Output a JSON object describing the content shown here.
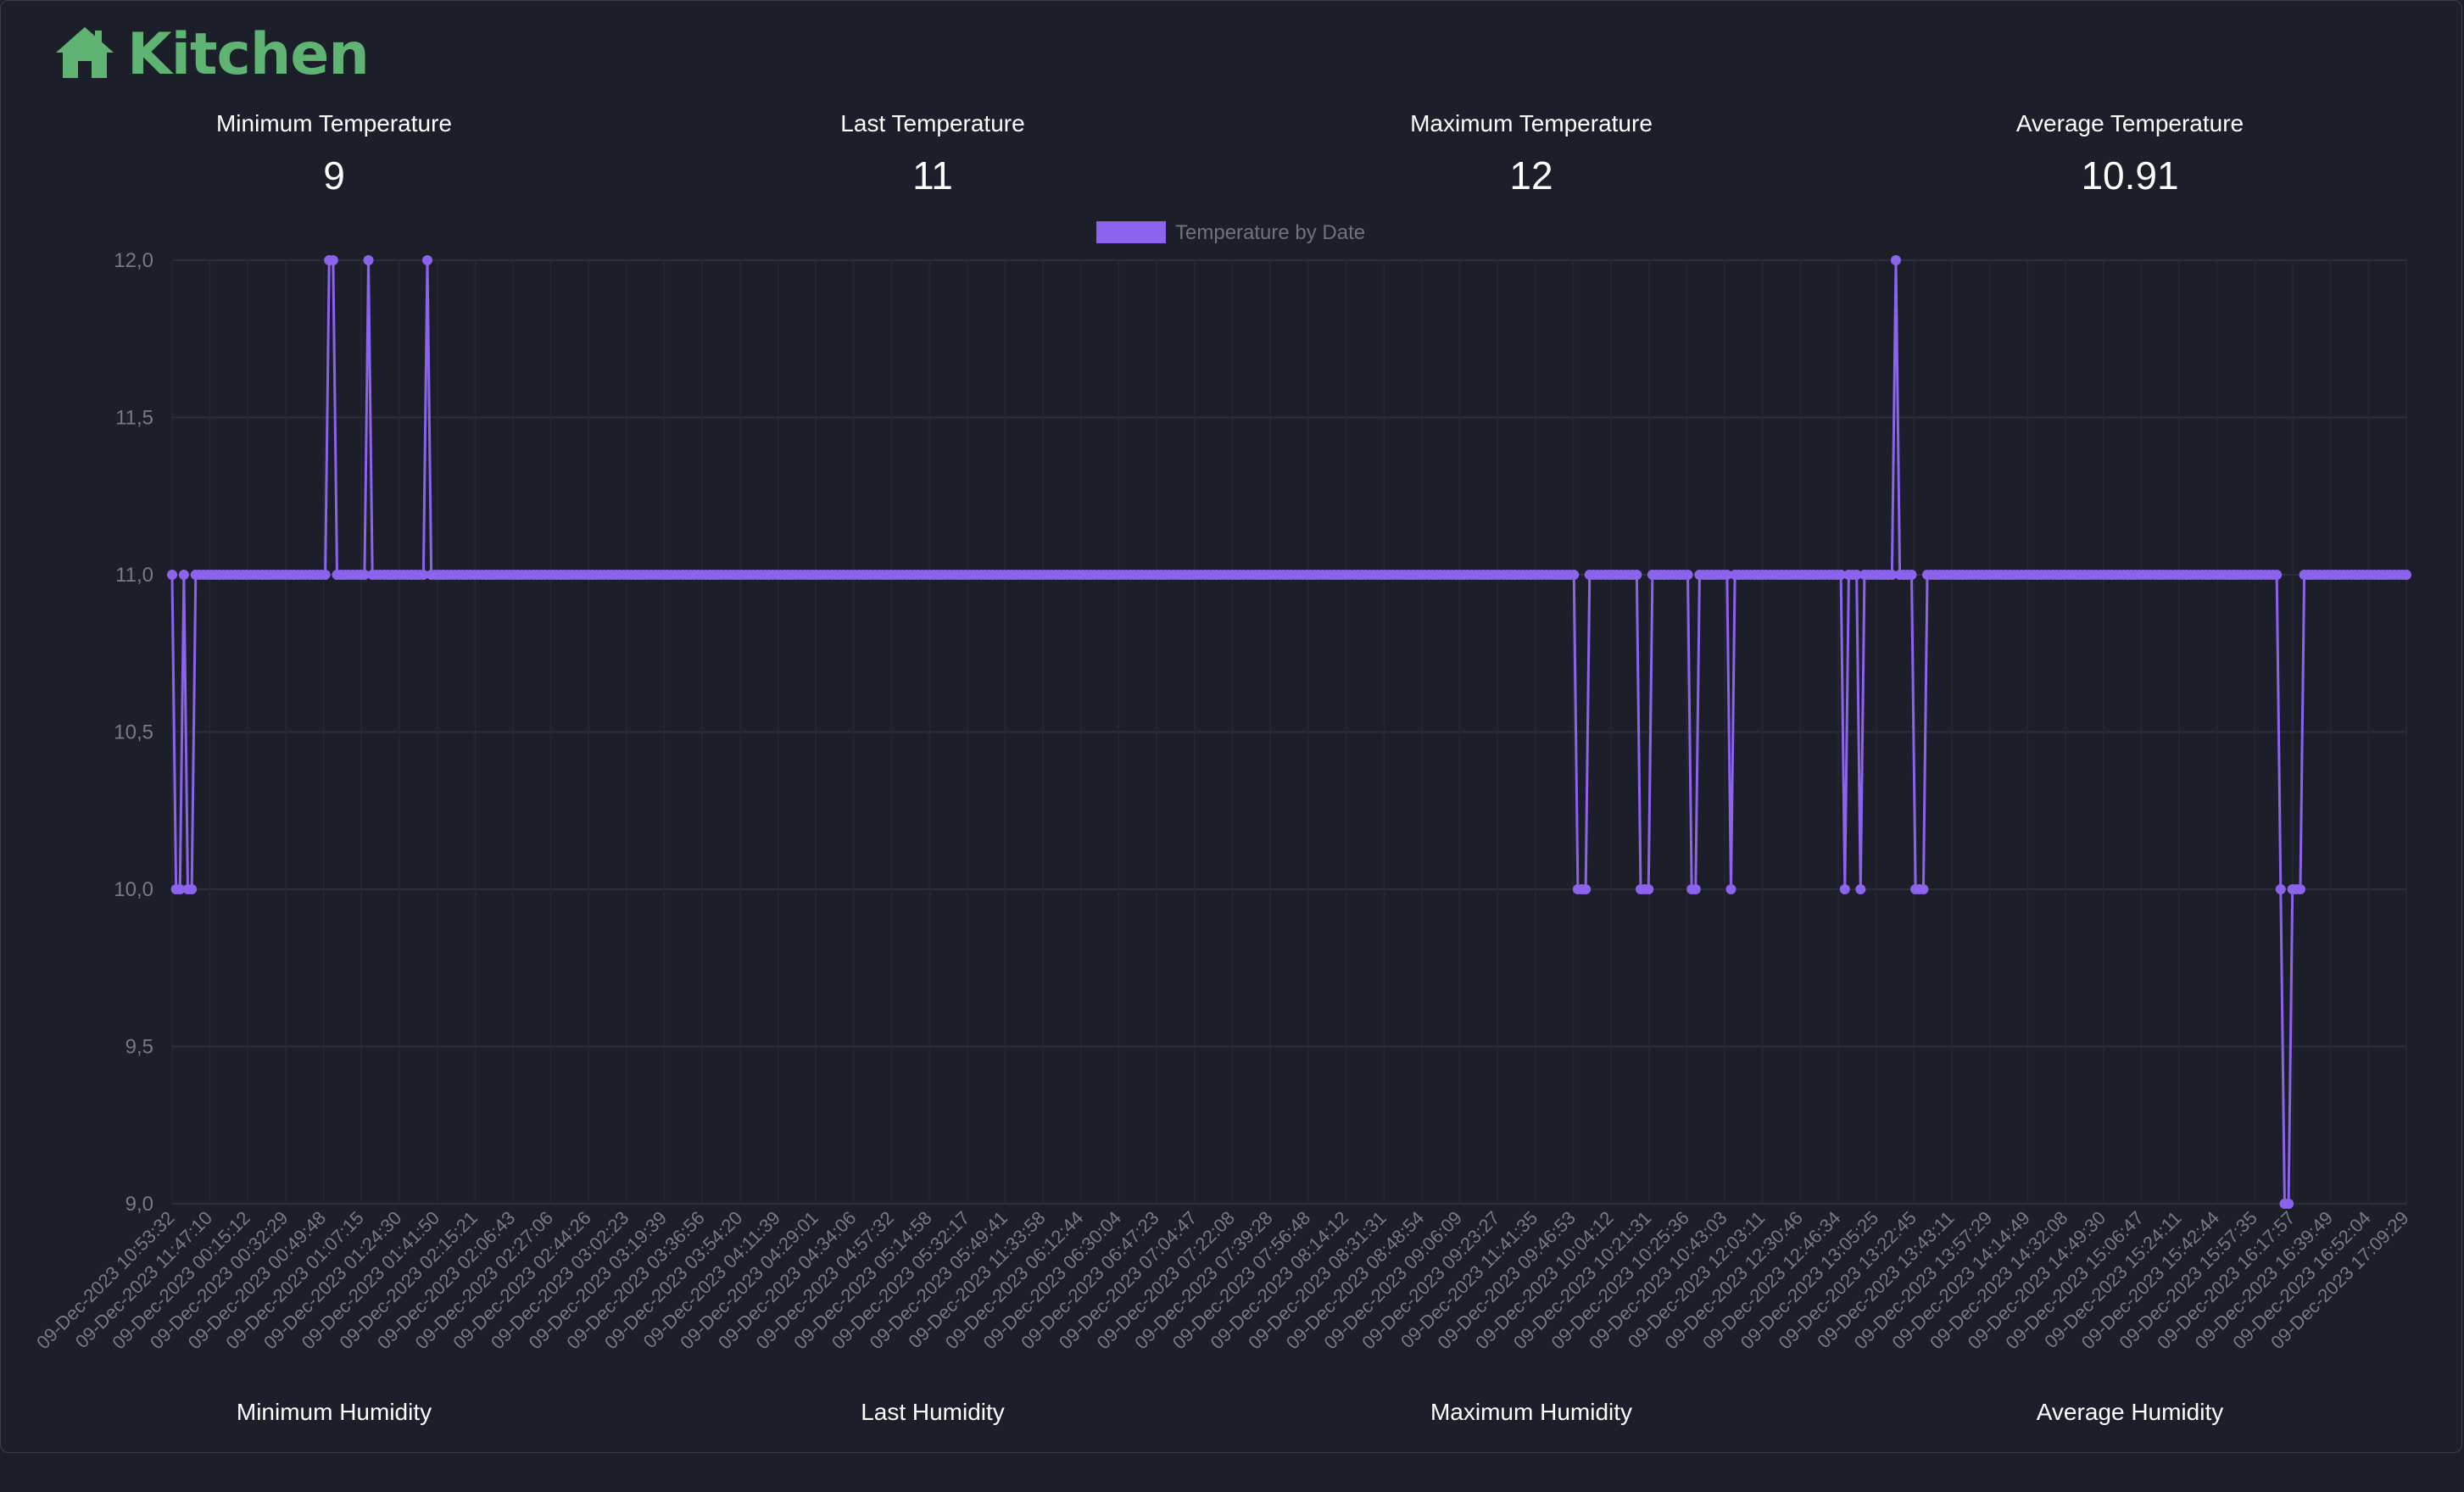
{
  "header": {
    "title": "Kitchen",
    "icon": "home-icon"
  },
  "colors": {
    "accent": "#8c63ec",
    "title": "#5fb373",
    "background": "#1c1f29"
  },
  "temperature_stats": [
    {
      "label": "Minimum Temperature",
      "value": "9"
    },
    {
      "label": "Last Temperature",
      "value": "11"
    },
    {
      "label": "Maximum Temperature",
      "value": "12"
    },
    {
      "label": "Average Temperature",
      "value": "10.91"
    }
  ],
  "humidity_stats": [
    {
      "label": "Minimum Humidity"
    },
    {
      "label": "Last Humidity"
    },
    {
      "label": "Maximum Humidity"
    },
    {
      "label": "Average Humidity"
    }
  ],
  "chart_data": {
    "type": "line",
    "legend": {
      "label": "Temperature by Date",
      "position": "top"
    },
    "ylim": [
      9,
      12
    ],
    "yticks": [
      "12,0",
      "11,5",
      "11,0",
      "10,5",
      "10,0",
      "9,5",
      "9,0"
    ],
    "grid": true,
    "xtick_labels": [
      "09-Dec-2023 10:53:32",
      "09-Dec-2023 11:47:10",
      "09-Dec-2023 00:15:12",
      "09-Dec-2023 00:32:29",
      "09-Dec-2023 00:49:48",
      "09-Dec-2023 01:07:15",
      "09-Dec-2023 01:24:30",
      "09-Dec-2023 01:41:50",
      "09-Dec-2023 02:15:21",
      "09-Dec-2023 02:06:43",
      "09-Dec-2023 02:27:06",
      "09-Dec-2023 02:44:26",
      "09-Dec-2023 03:02:23",
      "09-Dec-2023 03:19:39",
      "09-Dec-2023 03:36:56",
      "09-Dec-2023 03:54:20",
      "09-Dec-2023 04:11:39",
      "09-Dec-2023 04:29:01",
      "09-Dec-2023 04:34:06",
      "09-Dec-2023 04:57:32",
      "09-Dec-2023 05:14:58",
      "09-Dec-2023 05:32:17",
      "09-Dec-2023 05:49:41",
      "09-Dec-2023 11:33:58",
      "09-Dec-2023 06:12:44",
      "09-Dec-2023 06:30:04",
      "09-Dec-2023 06:47:23",
      "09-Dec-2023 07:04:47",
      "09-Dec-2023 07:22:08",
      "09-Dec-2023 07:39:28",
      "09-Dec-2023 07:56:48",
      "09-Dec-2023 08:14:12",
      "09-Dec-2023 08:31:31",
      "09-Dec-2023 08:48:54",
      "09-Dec-2023 09:06:09",
      "09-Dec-2023 09:23:27",
      "09-Dec-2023 11:41:35",
      "09-Dec-2023 09:46:53",
      "09-Dec-2023 10:04:12",
      "09-Dec-2023 10:21:31",
      "09-Dec-2023 10:25:36",
      "09-Dec-2023 10:43:03",
      "09-Dec-2023 12:03:11",
      "09-Dec-2023 12:30:46",
      "09-Dec-2023 12:46:34",
      "09-Dec-2023 13:05:25",
      "09-Dec-2023 13:22:45",
      "09-Dec-2023 13:43:11",
      "09-Dec-2023 13:57:29",
      "09-Dec-2023 14:14:49",
      "09-Dec-2023 14:32:08",
      "09-Dec-2023 14:49:30",
      "09-Dec-2023 15:06:47",
      "09-Dec-2023 15:24:11",
      "09-Dec-2023 15:42:44",
      "09-Dec-2023 15:57:35",
      "09-Dec-2023 16:17:57",
      "09-Dec-2023 16:39:49",
      "09-Dec-2023 16:52:04",
      "09-Dec-2023 17:09:29"
    ],
    "values": [
      11,
      10,
      10,
      11,
      10,
      10,
      11,
      11,
      11,
      11,
      11,
      11,
      11,
      11,
      11,
      11,
      11,
      11,
      11,
      11,
      11,
      11,
      11,
      11,
      11,
      11,
      11,
      11,
      11,
      11,
      11,
      11,
      11,
      11,
      11,
      11,
      11,
      11,
      11,
      11,
      12,
      12,
      11,
      11,
      11,
      11,
      11,
      11,
      11,
      11,
      12,
      11,
      11,
      11,
      11,
      11,
      11,
      11,
      11,
      11,
      11,
      11,
      11,
      11,
      11,
      12,
      11,
      11,
      11,
      11,
      11,
      11,
      11,
      11,
      11,
      11,
      11,
      11,
      11,
      11,
      11,
      11,
      11,
      11,
      11,
      11,
      11,
      11,
      11,
      11,
      11,
      11,
      11,
      11,
      11,
      11,
      11,
      11,
      11,
      11,
      11,
      11,
      11,
      11,
      11,
      11,
      11,
      11,
      11,
      11,
      11,
      11,
      11,
      11,
      11,
      11,
      11,
      11,
      11,
      11,
      11,
      11,
      11,
      11,
      11,
      11,
      11,
      11,
      11,
      11,
      11,
      11,
      11,
      11,
      11,
      11,
      11,
      11,
      11,
      11,
      11,
      11,
      11,
      11,
      11,
      11,
      11,
      11,
      11,
      11,
      11,
      11,
      11,
      11,
      11,
      11,
      11,
      11,
      11,
      11,
      11,
      11,
      11,
      11,
      11,
      11,
      11,
      11,
      11,
      11,
      11,
      11,
      11,
      11,
      11,
      11,
      11,
      11,
      11,
      11,
      11,
      11,
      11,
      11,
      11,
      11,
      11,
      11,
      11,
      11,
      11,
      11,
      11,
      11,
      11,
      11,
      11,
      11,
      11,
      11,
      11,
      11,
      11,
      11,
      11,
      11,
      11,
      11,
      11,
      11,
      11,
      11,
      11,
      11,
      11,
      11,
      11,
      11,
      11,
      11,
      11,
      11,
      11,
      11,
      11,
      11,
      11,
      11,
      11,
      11,
      11,
      11,
      11,
      11,
      11,
      11,
      11,
      11,
      11,
      11,
      11,
      11,
      11,
      11,
      11,
      11,
      11,
      11,
      11,
      11,
      11,
      11,
      11,
      11,
      11,
      11,
      11,
      11,
      11,
      11,
      11,
      11,
      11,
      11,
      11,
      11,
      11,
      11,
      11,
      11,
      11,
      11,
      11,
      11,
      11,
      11,
      11,
      11,
      11,
      11,
      11,
      11,
      11,
      11,
      11,
      11,
      11,
      11,
      11,
      11,
      11,
      11,
      11,
      11,
      11,
      11,
      11,
      11,
      11,
      11,
      11,
      11,
      11,
      11,
      11,
      11,
      11,
      11,
      11,
      11,
      11,
      11,
      11,
      11,
      11,
      11,
      11,
      11,
      11,
      11,
      11,
      11,
      11,
      11,
      11,
      11,
      11,
      11,
      11,
      11,
      11,
      11,
      11,
      11,
      11,
      11,
      11,
      11,
      11,
      11,
      11,
      11,
      11,
      11,
      11,
      11,
      11,
      11,
      11,
      11,
      11,
      11,
      11,
      11,
      11,
      11,
      11,
      11,
      10,
      10,
      10,
      11,
      11,
      11,
      11,
      11,
      11,
      11,
      11,
      11,
      11,
      11,
      11,
      11,
      10,
      10,
      10,
      11,
      11,
      11,
      11,
      11,
      11,
      11,
      11,
      11,
      11,
      10,
      10,
      11,
      11,
      11,
      11,
      11,
      11,
      11,
      11,
      10,
      11,
      11,
      11,
      11,
      11,
      11,
      11,
      11,
      11,
      11,
      11,
      11,
      11,
      11,
      11,
      11,
      11,
      11,
      11,
      11,
      11,
      11,
      11,
      11,
      11,
      11,
      11,
      11,
      10,
      11,
      11,
      11,
      10,
      11,
      11,
      11,
      11,
      11,
      11,
      11,
      11,
      12,
      11,
      11,
      11,
      11,
      10,
      10,
      10,
      11,
      11,
      11,
      11,
      11,
      11,
      11,
      11,
      11,
      11,
      11,
      11,
      11,
      11,
      11,
      11,
      11,
      11,
      11,
      11,
      11,
      11,
      11,
      11,
      11,
      11,
      11,
      11,
      11,
      11,
      11,
      11,
      11,
      11,
      11,
      11,
      11,
      11,
      11,
      11,
      11,
      11,
      11,
      11,
      11,
      11,
      11,
      11,
      11,
      11,
      11,
      11,
      11,
      11,
      11,
      11,
      11,
      11,
      11,
      11,
      11,
      11,
      11,
      11,
      11,
      11,
      11,
      11,
      11,
      11,
      11,
      11,
      11,
      11,
      11,
      11,
      11,
      11,
      11,
      11,
      11,
      11,
      11,
      11,
      11,
      11,
      11,
      11,
      11,
      11,
      10,
      9,
      9,
      10,
      10,
      10,
      11,
      11,
      11,
      11,
      11,
      11,
      11,
      11,
      11,
      11,
      11,
      11,
      11,
      11,
      11,
      11,
      11,
      11,
      11,
      11,
      11,
      11,
      11,
      11,
      11,
      11,
      11
    ]
  }
}
